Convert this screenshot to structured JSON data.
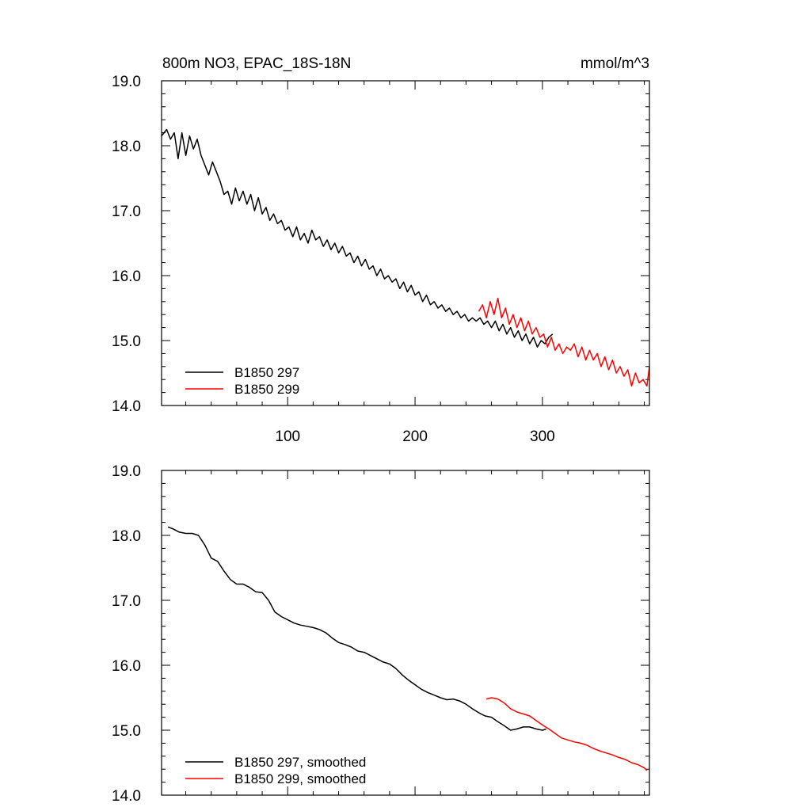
{
  "chart_data": [
    {
      "type": "line",
      "title": "800m NO3, EPAC_18S-18N",
      "units": "mmol/m^3",
      "xlim": [
        1,
        384
      ],
      "ylim": [
        14.0,
        19.0
      ],
      "xticks": [
        100,
        200,
        300
      ],
      "xtick_labels": [
        "100",
        "200",
        "300"
      ],
      "yticks": [
        14.0,
        15.0,
        16.0,
        17.0,
        18.0,
        19.0
      ],
      "ytick_labels": [
        "14.0",
        "15.0",
        "16.0",
        "17.0",
        "18.0",
        "19.0"
      ],
      "legend_position": "bottom-left",
      "series": [
        {
          "name": "B1850 297",
          "color": "#000000",
          "x": [
            1,
            5,
            8,
            11,
            14,
            17,
            20,
            23,
            26,
            29,
            32,
            35,
            38,
            41,
            44,
            47,
            50,
            53,
            56,
            59,
            62,
            65,
            68,
            71,
            74,
            77,
            80,
            83,
            86,
            89,
            92,
            95,
            98,
            101,
            104,
            107,
            110,
            113,
            116,
            119,
            122,
            125,
            128,
            131,
            134,
            137,
            140,
            143,
            146,
            149,
            152,
            155,
            158,
            161,
            164,
            167,
            170,
            173,
            176,
            179,
            182,
            185,
            188,
            191,
            194,
            197,
            200,
            203,
            206,
            209,
            212,
            215,
            218,
            221,
            224,
            227,
            230,
            233,
            236,
            239,
            242,
            245,
            248,
            251,
            254,
            257,
            260,
            263,
            266,
            269,
            272,
            275,
            278,
            281,
            284,
            287,
            290,
            293,
            296,
            299,
            302,
            305,
            308
          ],
          "values": [
            18.15,
            18.25,
            18.1,
            18.2,
            17.8,
            18.2,
            17.85,
            18.15,
            17.95,
            18.1,
            17.85,
            17.7,
            17.55,
            17.75,
            17.6,
            17.45,
            17.25,
            17.3,
            17.1,
            17.35,
            17.15,
            17.3,
            17.1,
            17.25,
            17.0,
            17.2,
            16.95,
            17.05,
            16.85,
            16.95,
            16.8,
            16.85,
            16.7,
            16.75,
            16.6,
            16.75,
            16.55,
            16.65,
            16.5,
            16.7,
            16.55,
            16.6,
            16.45,
            16.55,
            16.4,
            16.5,
            16.35,
            16.45,
            16.3,
            16.35,
            16.2,
            16.3,
            16.15,
            16.25,
            16.1,
            16.15,
            16.0,
            16.1,
            15.95,
            16.0,
            15.9,
            15.95,
            15.8,
            15.9,
            15.75,
            15.85,
            15.7,
            15.75,
            15.6,
            15.7,
            15.55,
            15.6,
            15.5,
            15.55,
            15.45,
            15.5,
            15.4,
            15.45,
            15.35,
            15.4,
            15.3,
            15.35,
            15.3,
            15.35,
            15.25,
            15.3,
            15.2,
            15.3,
            15.15,
            15.25,
            15.1,
            15.2,
            15.05,
            15.15,
            15.0,
            15.1,
            14.95,
            15.05,
            14.9,
            15.0,
            14.95,
            15.05,
            15.1
          ]
        },
        {
          "name": "B1850 299",
          "color": "#ff0000",
          "x": [
            250,
            253,
            256,
            259,
            262,
            265,
            268,
            271,
            274,
            277,
            280,
            283,
            286,
            289,
            292,
            295,
            298,
            301,
            304,
            307,
            310,
            313,
            316,
            319,
            322,
            325,
            328,
            331,
            334,
            337,
            340,
            343,
            346,
            349,
            352,
            355,
            358,
            361,
            364,
            367,
            370,
            373,
            376,
            379,
            382,
            384
          ],
          "values": [
            15.45,
            15.55,
            15.35,
            15.6,
            15.4,
            15.65,
            15.35,
            15.5,
            15.25,
            15.4,
            15.2,
            15.35,
            15.15,
            15.3,
            15.1,
            15.2,
            15.05,
            15.1,
            14.9,
            15.05,
            14.85,
            14.95,
            14.8,
            14.9,
            14.85,
            14.95,
            14.75,
            14.9,
            14.7,
            14.85,
            14.7,
            14.8,
            14.6,
            14.75,
            14.55,
            14.7,
            14.5,
            14.6,
            14.45,
            14.55,
            14.3,
            14.5,
            14.35,
            14.4,
            14.3,
            14.6
          ]
        }
      ]
    },
    {
      "type": "line",
      "xlim": [
        1,
        384
      ],
      "ylim": [
        14.0,
        19.0
      ],
      "xticks": [
        100,
        200,
        300
      ],
      "yticks": [
        14.0,
        15.0,
        16.0,
        17.0,
        18.0,
        19.0
      ],
      "ytick_labels": [
        "14.0",
        "15.0",
        "16.0",
        "17.0",
        "18.0",
        "19.0"
      ],
      "legend_position": "bottom-left",
      "series": [
        {
          "name": "B1850 297, smoothed",
          "color": "#000000",
          "x": [
            6,
            10,
            15,
            20,
            25,
            30,
            35,
            40,
            45,
            50,
            55,
            60,
            65,
            70,
            75,
            80,
            85,
            90,
            95,
            100,
            105,
            110,
            115,
            120,
            125,
            130,
            135,
            140,
            145,
            150,
            155,
            160,
            165,
            170,
            175,
            180,
            185,
            190,
            195,
            200,
            205,
            210,
            215,
            220,
            225,
            230,
            235,
            240,
            245,
            250,
            255,
            260,
            265,
            270,
            275,
            280,
            285,
            290,
            295,
            300,
            303
          ],
          "values": [
            18.13,
            18.1,
            18.05,
            18.03,
            18.03,
            18.0,
            17.85,
            17.65,
            17.6,
            17.45,
            17.32,
            17.25,
            17.25,
            17.2,
            17.13,
            17.12,
            17.0,
            16.82,
            16.75,
            16.7,
            16.65,
            16.62,
            16.6,
            16.58,
            16.55,
            16.5,
            16.42,
            16.35,
            16.32,
            16.28,
            16.22,
            16.2,
            16.15,
            16.1,
            16.05,
            16.02,
            15.95,
            15.85,
            15.77,
            15.7,
            15.63,
            15.58,
            15.54,
            15.5,
            15.47,
            15.48,
            15.45,
            15.4,
            15.33,
            15.27,
            15.22,
            15.2,
            15.13,
            15.07,
            15.0,
            15.02,
            15.05,
            15.05,
            15.02,
            15.0,
            15.02
          ]
        },
        {
          "name": "B1850 299, smoothed",
          "color": "#ff0000",
          "x": [
            256,
            260,
            265,
            270,
            275,
            280,
            285,
            290,
            295,
            300,
            305,
            310,
            315,
            320,
            325,
            330,
            335,
            340,
            345,
            350,
            355,
            360,
            365,
            370,
            375,
            380,
            382
          ],
          "values": [
            15.48,
            15.5,
            15.48,
            15.42,
            15.33,
            15.28,
            15.25,
            15.22,
            15.15,
            15.08,
            15.02,
            14.95,
            14.88,
            14.85,
            14.82,
            14.8,
            14.77,
            14.72,
            14.68,
            14.65,
            14.62,
            14.58,
            14.55,
            14.5,
            14.47,
            14.42,
            14.38
          ]
        }
      ]
    }
  ]
}
